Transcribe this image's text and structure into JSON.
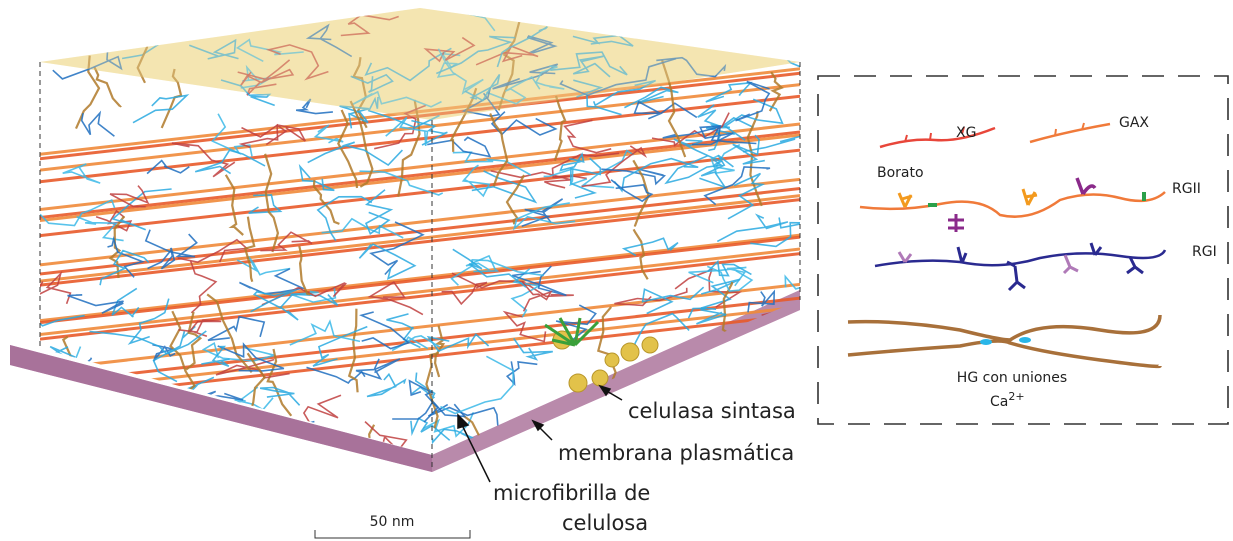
{
  "figure": {
    "labels": {
      "synthase": "celulasa sintasa",
      "membrane": "membrana plasmática",
      "microfibril_1": "microfibrilla de",
      "microfibril_2": "celulosa"
    },
    "scale_bar": "50 nm"
  },
  "legend": {
    "xg": "XG",
    "gax": "GAX",
    "borate": "Borato",
    "rgii": "RGII",
    "rgi": "RGI",
    "hg": "HG con uniones",
    "ca": "Ca",
    "ca_charge": "2+"
  }
}
